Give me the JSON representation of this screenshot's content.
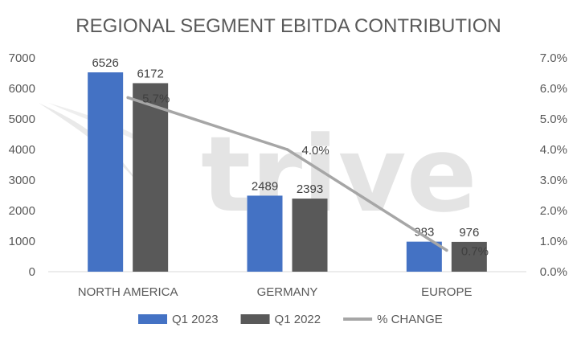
{
  "chart_data": {
    "type": "bar",
    "title": "REGIONAL SEGMENT EBITDA CONTRIBUTION",
    "watermark": "trive",
    "categories": [
      "NORTH AMERICA",
      "GERMANY",
      "EUROPE"
    ],
    "series": [
      {
        "name": "Q1 2023",
        "type": "bar",
        "axis": "left",
        "color": "#4472C4",
        "values": [
          6526,
          2489,
          983
        ]
      },
      {
        "name": "Q1 2022",
        "type": "bar",
        "axis": "left",
        "color": "#595959",
        "values": [
          6172,
          2393,
          976
        ]
      },
      {
        "name": "% CHANGE",
        "type": "line",
        "axis": "right",
        "color": "#A6A6A6",
        "values": [
          5.7,
          4.0,
          0.7
        ],
        "labels": [
          "5.7%",
          "4.0%",
          "0.7%"
        ]
      }
    ],
    "ylim": [
      0,
      7000
    ],
    "yticks": [
      "0",
      "1000",
      "2000",
      "3000",
      "4000",
      "5000",
      "6000",
      "7000"
    ],
    "y2lim": [
      0,
      7.0
    ],
    "y2ticks": [
      "0.0%",
      "1.0%",
      "2.0%",
      "3.0%",
      "4.0%",
      "5.0%",
      "6.0%",
      "7.0%"
    ],
    "grid": false,
    "legend": "bottom"
  }
}
